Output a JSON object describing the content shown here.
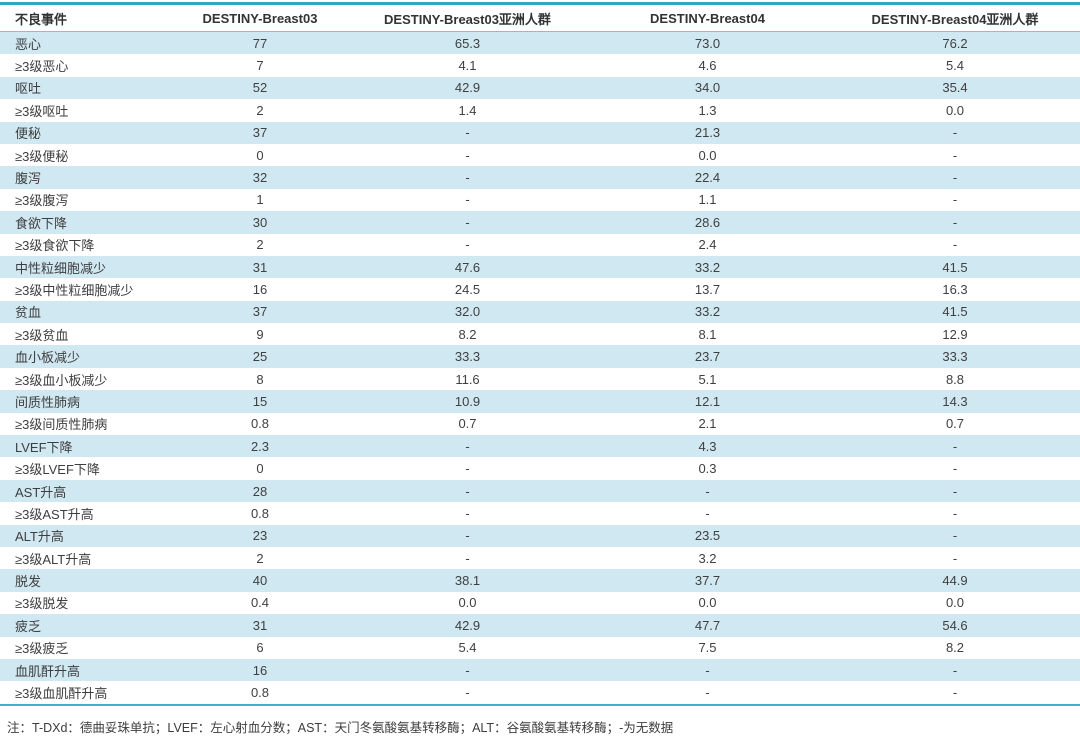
{
  "chart_data": {
    "type": "table",
    "title": "",
    "columns": [
      "不良事件",
      "DESTINY-Breast03",
      "DESTINY-Breast03亚洲人群",
      "DESTINY-Breast04",
      "DESTINY-Breast04亚洲人群"
    ],
    "rows": [
      {
        "label": "恶心",
        "values": [
          "77",
          "65.3",
          "73.0",
          "76.2"
        ]
      },
      {
        "label": "≥3级恶心",
        "values": [
          "7",
          "4.1",
          "4.6",
          "5.4"
        ]
      },
      {
        "label": "呕吐",
        "values": [
          "52",
          "42.9",
          "34.0",
          "35.4"
        ]
      },
      {
        "label": "≥3级呕吐",
        "values": [
          "2",
          "1.4",
          "1.3",
          "0.0"
        ]
      },
      {
        "label": "便秘",
        "values": [
          "37",
          "-",
          "21.3",
          "-"
        ]
      },
      {
        "label": "≥3级便秘",
        "values": [
          "0",
          "-",
          "0.0",
          "-"
        ]
      },
      {
        "label": "腹泻",
        "values": [
          "32",
          "-",
          "22.4",
          "-"
        ]
      },
      {
        "label": "≥3级腹泻",
        "values": [
          "1",
          "-",
          "1.1",
          "-"
        ]
      },
      {
        "label": "食欲下降",
        "values": [
          "30",
          "-",
          "28.6",
          "-"
        ]
      },
      {
        "label": "≥3级食欲下降",
        "values": [
          "2",
          "-",
          "2.4",
          "-"
        ]
      },
      {
        "label": "中性粒细胞减少",
        "values": [
          "31",
          "47.6",
          "33.2",
          "41.5"
        ]
      },
      {
        "label": "≥3级中性粒细胞减少",
        "values": [
          "16",
          "24.5",
          "13.7",
          "16.3"
        ]
      },
      {
        "label": "贫血",
        "values": [
          "37",
          "32.0",
          "33.2",
          "41.5"
        ]
      },
      {
        "label": "≥3级贫血",
        "values": [
          "9",
          "8.2",
          "8.1",
          "12.9"
        ]
      },
      {
        "label": "血小板减少",
        "values": [
          "25",
          "33.3",
          "23.7",
          "33.3"
        ]
      },
      {
        "label": "≥3级血小板减少",
        "values": [
          "8",
          "11.6",
          "5.1",
          "8.8"
        ]
      },
      {
        "label": "间质性肺病",
        "values": [
          "15",
          "10.9",
          "12.1",
          "14.3"
        ]
      },
      {
        "label": "≥3级间质性肺病",
        "values": [
          "0.8",
          "0.7",
          "2.1",
          "0.7"
        ]
      },
      {
        "label": "LVEF下降",
        "values": [
          "2.3",
          "-",
          "4.3",
          "-"
        ]
      },
      {
        "label": "≥3级LVEF下降",
        "values": [
          "0",
          "-",
          "0.3",
          "-"
        ]
      },
      {
        "label": "AST升高",
        "values": [
          "28",
          "-",
          "-",
          "-"
        ]
      },
      {
        "label": "≥3级AST升高",
        "values": [
          "0.8",
          "-",
          "-",
          "-"
        ]
      },
      {
        "label": "ALT升高",
        "values": [
          "23",
          "-",
          "23.5",
          "-"
        ]
      },
      {
        "label": "≥3级ALT升高",
        "values": [
          "2",
          "-",
          "3.2",
          "-"
        ]
      },
      {
        "label": "脱发",
        "values": [
          "40",
          "38.1",
          "37.7",
          "44.9"
        ]
      },
      {
        "label": "≥3级脱发",
        "values": [
          "0.4",
          "0.0",
          "0.0",
          "0.0"
        ]
      },
      {
        "label": "疲乏",
        "values": [
          "31",
          "42.9",
          "47.7",
          "54.6"
        ]
      },
      {
        "label": "≥3级疲乏",
        "values": [
          "6",
          "5.4",
          "7.5",
          "8.2"
        ]
      },
      {
        "label": "血肌酐升高",
        "values": [
          "16",
          "-",
          "-",
          "-"
        ]
      },
      {
        "label": "≥3级血肌酐升高",
        "values": [
          "0.8",
          "-",
          "-",
          "-"
        ]
      }
    ],
    "footnote": "注：T-DXd：德曲妥珠单抗；LVEF：左心射血分数；AST：天门冬氨酸氨基转移酶；ALT：谷氨酸氨基转移酶；-为无数据",
    "layout_hints": {
      "striped": true,
      "stripe_rows": "odd",
      "grid": "none"
    }
  },
  "colors": {
    "accent_teal_top_border": "#2ea9c5",
    "stripe_blue": "#d0e8f1",
    "header_rule": "#7fc3d7",
    "bottom_rule": "#44afca",
    "text": "#3e3e3e"
  }
}
